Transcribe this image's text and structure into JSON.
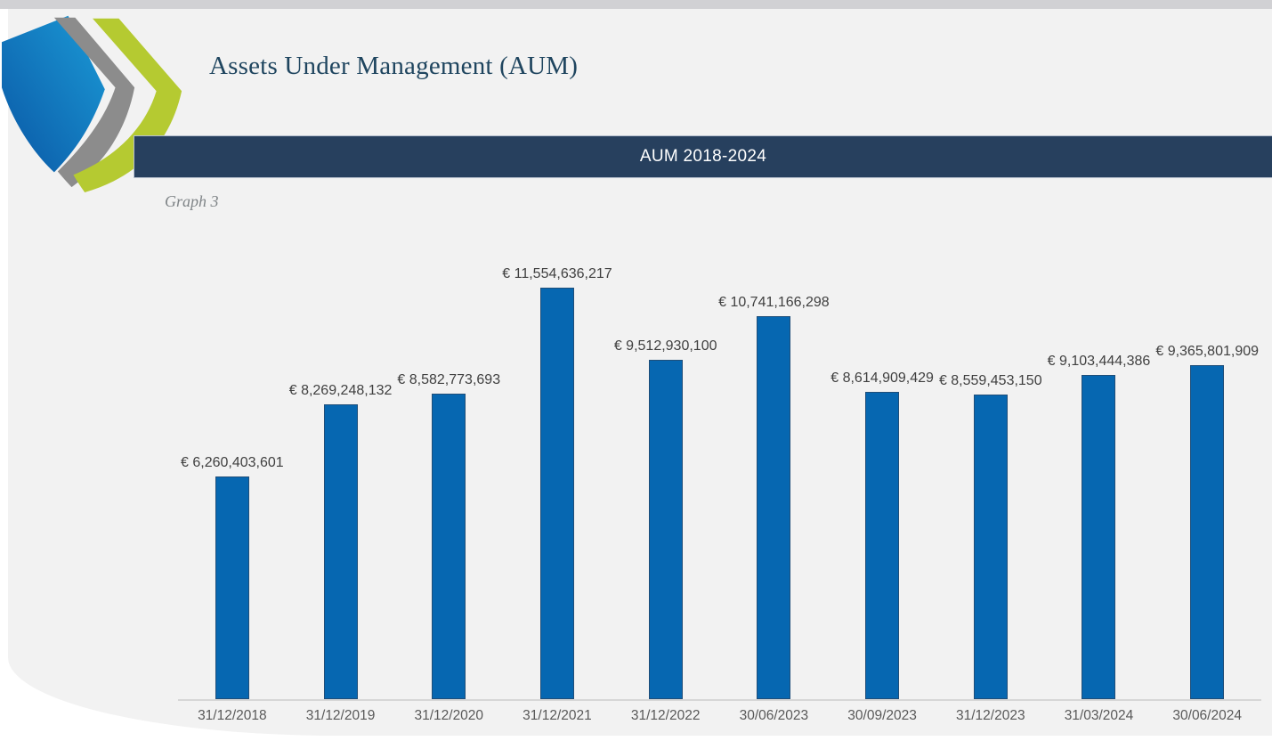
{
  "page": {
    "title": "Assets Under Management (AUM)",
    "banner_label": "AUM 2018-2024",
    "graph_caption": "Graph 3"
  },
  "logo": {
    "name": "triple-chevron-swoosh-logo",
    "colors": {
      "blue_dark": "#0a57a5",
      "blue_light": "#1b9ad6",
      "gray": "#8c8c8c",
      "green": "#b5ca31"
    }
  },
  "colors": {
    "banner_bg": "#27405e",
    "card_bg": "#f2f2f2",
    "top_stripe": "#d1d1d4",
    "title_text": "#1f455f",
    "axis_line": "#d6d6d6",
    "tick_text": "#595959",
    "value_label_text": "#404040"
  },
  "chart_data": {
    "type": "bar",
    "title": "AUM 2018-2024",
    "categories": [
      "31/12/2018",
      "31/12/2019",
      "31/12/2020",
      "31/12/2021",
      "31/12/2022",
      "30/06/2023",
      "30/09/2023",
      "31/12/2023",
      "31/03/2024",
      "30/06/2024"
    ],
    "values": [
      6260403601,
      8269248132,
      8582773693,
      11554636217,
      9512930100,
      10741166298,
      8614909429,
      8559453150,
      9103444386,
      9365801909
    ],
    "labels": [
      "€ 6,260,403,601",
      "€ 8,269,248,132",
      "€ 8,582,773,693",
      "€ 11,554,636,217",
      "€ 9,512,930,100",
      "€ 10,741,166,298",
      "€ 8,614,909,429",
      "€ 8,559,453,150",
      "€ 9,103,444,386",
      "€ 9,365,801,909"
    ],
    "currency": "EUR",
    "bar_color": "#0667b1",
    "bar_border_color": "#1f4e79",
    "ylim": [
      0,
      12000000000
    ],
    "grid": false,
    "legend": false,
    "data_labels": true
  }
}
